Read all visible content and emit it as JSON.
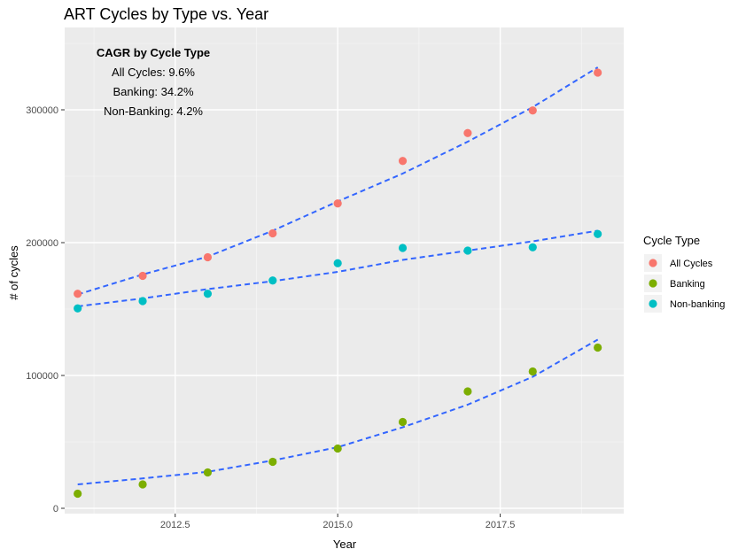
{
  "chart_data": {
    "type": "scatter",
    "title": "ART Cycles by Type vs. Year",
    "xlabel": "Year",
    "ylabel": "# of cycles",
    "xlim": [
      2010.8,
      2019.4
    ],
    "ylim": [
      -4000,
      362000
    ],
    "x_ticks": [
      2012.5,
      2015.0,
      2017.5
    ],
    "x_tick_labels": [
      "2012.5",
      "2015.0",
      "2017.5"
    ],
    "y_ticks": [
      0,
      100000,
      200000,
      300000
    ],
    "y_tick_labels": [
      "0",
      "100000",
      "200000",
      "300000"
    ],
    "grid": true,
    "legend": {
      "title": "Cycle Type",
      "position": "right"
    },
    "annotation": {
      "title": "CAGR by Cycle Type",
      "lines": [
        "All Cycles: 9.6%",
        "Banking: 34.2%",
        "Non-Banking: 4.2%"
      ]
    },
    "x": [
      2011,
      2012,
      2013,
      2014,
      2015,
      2016,
      2017,
      2018,
      2019
    ],
    "series": [
      {
        "name": "All Cycles",
        "color": "#F8766D",
        "values": [
          161500,
          175000,
          189000,
          207000,
          229500,
          261500,
          282500,
          299500,
          328000
        ],
        "trend": [
          161000,
          176000,
          189500,
          209000,
          231000,
          252000,
          276000,
          302000,
          332000
        ]
      },
      {
        "name": "Banking",
        "color": "#7CAE00",
        "values": [
          11000,
          18000,
          27000,
          35000,
          45000,
          65000,
          88000,
          103000,
          121000
        ],
        "trend": [
          18000,
          22500,
          27500,
          36000,
          46000,
          61000,
          78000,
          99000,
          127000
        ]
      },
      {
        "name": "Non-banking",
        "color": "#00BFC4",
        "values": [
          150500,
          156000,
          161500,
          171500,
          184500,
          196000,
          194000,
          196500,
          206500
        ],
        "trend": [
          152000,
          158000,
          165000,
          171000,
          178000,
          187000,
          194000,
          201000,
          209000
        ]
      }
    ],
    "trend_color": "#3366FF"
  }
}
